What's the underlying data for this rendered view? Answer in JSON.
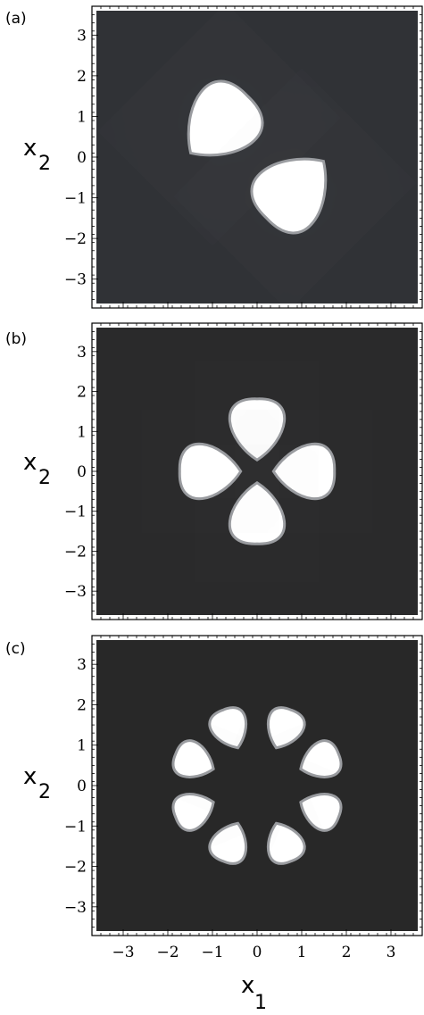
{
  "chart_data": [
    {
      "panel": "(a)",
      "type": "heatmap",
      "xlabel": "",
      "ylabel": "x2",
      "xlim": [
        -3.6,
        3.6
      ],
      "ylim": [
        -3.6,
        3.6
      ],
      "yticks": [
        "3",
        "2",
        "1",
        "0",
        "−1",
        "−2",
        "−3"
      ],
      "background_color": "#303236",
      "lobe_color": "#ffffff",
      "lobes": [
        {
          "cx": -0.85,
          "cy": 0.8,
          "r": 0.95,
          "rot_deg": 45
        },
        {
          "cx": 0.85,
          "cy": -0.8,
          "r": 0.95,
          "rot_deg": -135
        }
      ]
    },
    {
      "panel": "(b)",
      "type": "heatmap",
      "xlabel": "",
      "ylabel": "x2",
      "xlim": [
        -3.6,
        3.6
      ],
      "ylim": [
        -3.6,
        3.6
      ],
      "yticks": [
        "3",
        "2",
        "1",
        "0",
        "−1",
        "−2",
        "−3"
      ],
      "background_color": "#2a2a2b",
      "lobe_color": "#ffffff",
      "lobes": [
        {
          "cx": 0.0,
          "cy": 1.05,
          "r": 0.72,
          "rot_deg": 0
        },
        {
          "cx": 1.05,
          "cy": 0.0,
          "r": 0.72,
          "rot_deg": 90
        },
        {
          "cx": 0.0,
          "cy": -1.05,
          "r": 0.72,
          "rot_deg": 180
        },
        {
          "cx": -1.05,
          "cy": 0.0,
          "r": 0.72,
          "rot_deg": -90
        }
      ]
    },
    {
      "panel": "(c)",
      "type": "heatmap",
      "xlabel": "x1",
      "ylabel": "x2",
      "xlim": [
        -3.6,
        3.6
      ],
      "ylim": [
        -3.6,
        3.6
      ],
      "xticks": [
        "−3",
        "−2",
        "−1",
        "0",
        "1",
        "2",
        "3"
      ],
      "yticks": [
        "3",
        "2",
        "1",
        "0",
        "−1",
        "−2",
        "−3"
      ],
      "background_color": "#282828",
      "lobe_color": "#ffffff",
      "lobes": [
        {
          "cx": -0.6,
          "cy": 1.4,
          "r": 0.48,
          "rot_deg": -22
        },
        {
          "cx": 0.6,
          "cy": 1.4,
          "r": 0.48,
          "rot_deg": 22
        },
        {
          "cx": 1.4,
          "cy": 0.6,
          "r": 0.48,
          "rot_deg": 68
        },
        {
          "cx": 1.4,
          "cy": -0.6,
          "r": 0.48,
          "rot_deg": 112
        },
        {
          "cx": 0.6,
          "cy": -1.4,
          "r": 0.48,
          "rot_deg": 158
        },
        {
          "cx": -0.6,
          "cy": -1.4,
          "r": 0.48,
          "rot_deg": -158
        },
        {
          "cx": -1.4,
          "cy": -0.6,
          "r": 0.48,
          "rot_deg": -112
        },
        {
          "cx": -1.4,
          "cy": 0.6,
          "r": 0.48,
          "rot_deg": -68
        }
      ]
    }
  ]
}
